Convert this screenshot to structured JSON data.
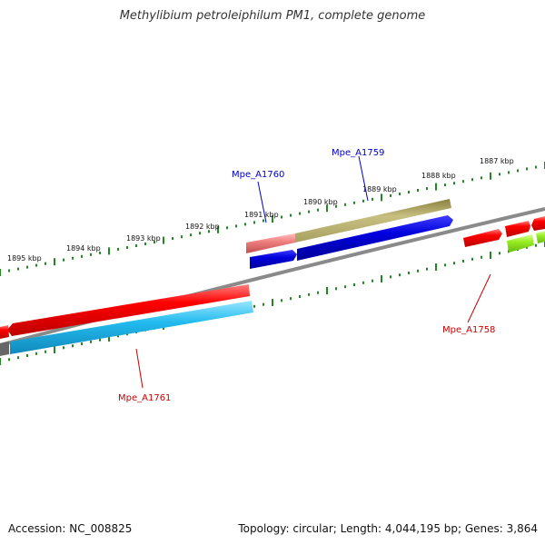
{
  "title": "Methylibium petroleiphilum PM1, complete genome",
  "footer": {
    "accession": "Accession: NC_008825",
    "topology": "Topology: circular; Length: 4,044,195 bp; Genes: 3,864"
  },
  "ticks": [
    "1887 kbp",
    "1888 kbp",
    "1889 kbp",
    "1890 kbp",
    "1891 kbp",
    "1892 kbp",
    "1893 kbp",
    "1894 kbp",
    "1895 kbp"
  ],
  "genes": {
    "mpe_a1760": {
      "label": "Mpe_A1760",
      "color": "#0000cc"
    },
    "mpe_a1759": {
      "label": "Mpe_A1759",
      "color": "#0000cc"
    },
    "mpe_a1758": {
      "label": "Mpe_A1758",
      "color": "#cc0000"
    },
    "mpe_a1761": {
      "label": "Mpe_A1761",
      "color": "#cc0000"
    }
  },
  "colors": {
    "backbone": "#888888",
    "red_gene": "#ee0000",
    "pink_gene": "#f08080",
    "olive_gene": "#c8c080",
    "blue_gene": "#0000dd",
    "cyan_gene": "#22bbee",
    "green_gene": "#99ee22",
    "tick": "#228822"
  }
}
